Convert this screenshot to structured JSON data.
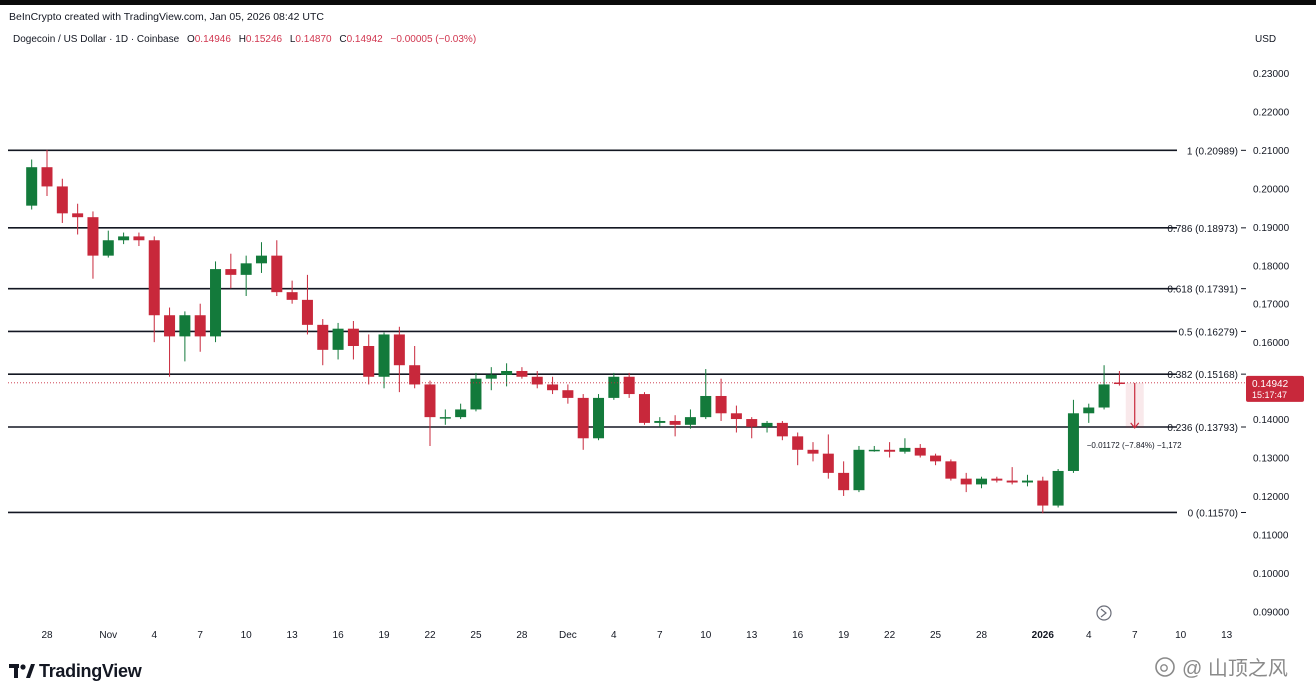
{
  "header": {
    "credit": "BeInCrypto created with TradingView.com, Jan 05, 2026 08:42 UTC",
    "symbol": "Dogecoin / US Dollar · 1D · Coinbase",
    "open_label": "O",
    "open": "0.14946",
    "high_label": "H",
    "high": "0.15246",
    "low_label": "L",
    "low": "0.14870",
    "close_label": "C",
    "close": "0.14942",
    "change": "−0.00005 (−0.03%)",
    "currency": "USD"
  },
  "chart_data": {
    "type": "candlestick",
    "ylim": [
      0.085,
      0.235
    ],
    "y_ticks": [
      "0.23000",
      "0.22000",
      "0.21000",
      "0.20000",
      "0.19000",
      "0.18000",
      "0.17000",
      "0.16000",
      "0.15000",
      "0.14000",
      "0.13000",
      "0.12000",
      "0.11000",
      "0.10000",
      "0.09000"
    ],
    "y_tick_values": [
      0.23,
      0.22,
      0.21,
      0.2,
      0.19,
      0.18,
      0.17,
      0.16,
      0.15,
      0.14,
      0.13,
      0.12,
      0.11,
      0.1,
      0.09
    ],
    "x_ticks": [
      {
        "label": "28",
        "day": -4
      },
      {
        "label": "Nov",
        "day": 0
      },
      {
        "label": "4",
        "day": 3
      },
      {
        "label": "7",
        "day": 6
      },
      {
        "label": "10",
        "day": 9
      },
      {
        "label": "13",
        "day": 12
      },
      {
        "label": "16",
        "day": 15
      },
      {
        "label": "19",
        "day": 18
      },
      {
        "label": "22",
        "day": 21
      },
      {
        "label": "25",
        "day": 24
      },
      {
        "label": "28",
        "day": 27
      },
      {
        "label": "Dec",
        "day": 30
      },
      {
        "label": "4",
        "day": 33
      },
      {
        "label": "7",
        "day": 36
      },
      {
        "label": "10",
        "day": 39
      },
      {
        "label": "13",
        "day": 42
      },
      {
        "label": "16",
        "day": 45
      },
      {
        "label": "19",
        "day": 48
      },
      {
        "label": "22",
        "day": 51
      },
      {
        "label": "25",
        "day": 54
      },
      {
        "label": "28",
        "day": 57
      },
      {
        "label": "2026",
        "day": 61,
        "bold": true
      },
      {
        "label": "4",
        "day": 64
      },
      {
        "label": "7",
        "day": 67
      },
      {
        "label": "10",
        "day": 70
      },
      {
        "label": "13",
        "day": 73
      }
    ],
    "fib_levels": [
      {
        "label": "1 (0.20989)",
        "value": 0.20989
      },
      {
        "label": "0.786 (0.18973)",
        "value": 0.18973
      },
      {
        "label": "0.618 (0.17391)",
        "value": 0.17391
      },
      {
        "label": "0.5 (0.16279)",
        "value": 0.16279
      },
      {
        "label": "0.382 (0.15168)",
        "value": 0.15168
      },
      {
        "label": "0.236 (0.13793)",
        "value": 0.13793
      },
      {
        "label": "0 (0.11570)",
        "value": 0.1157
      }
    ],
    "candles": [
      {
        "day": -5,
        "o": 0.1955,
        "h": 0.2075,
        "l": 0.1945,
        "c": 0.2055
      },
      {
        "day": -4,
        "o": 0.2055,
        "h": 0.21,
        "l": 0.198,
        "c": 0.2005
      },
      {
        "day": -3,
        "o": 0.2005,
        "h": 0.2025,
        "l": 0.191,
        "c": 0.1935
      },
      {
        "day": -2,
        "o": 0.1935,
        "h": 0.196,
        "l": 0.188,
        "c": 0.1925
      },
      {
        "day": -1,
        "o": 0.1925,
        "h": 0.194,
        "l": 0.1765,
        "c": 0.1825
      },
      {
        "day": 0,
        "o": 0.1825,
        "h": 0.189,
        "l": 0.182,
        "c": 0.1865
      },
      {
        "day": 1,
        "o": 0.1865,
        "h": 0.1885,
        "l": 0.1855,
        "c": 0.1875
      },
      {
        "day": 2,
        "o": 0.1875,
        "h": 0.1885,
        "l": 0.185,
        "c": 0.1865
      },
      {
        "day": 3,
        "o": 0.1865,
        "h": 0.1875,
        "l": 0.16,
        "c": 0.167
      },
      {
        "day": 4,
        "o": 0.167,
        "h": 0.169,
        "l": 0.151,
        "c": 0.1615
      },
      {
        "day": 5,
        "o": 0.1615,
        "h": 0.168,
        "l": 0.155,
        "c": 0.167
      },
      {
        "day": 6,
        "o": 0.167,
        "h": 0.17,
        "l": 0.1575,
        "c": 0.1615
      },
      {
        "day": 7,
        "o": 0.1615,
        "h": 0.181,
        "l": 0.16,
        "c": 0.179
      },
      {
        "day": 8,
        "o": 0.179,
        "h": 0.183,
        "l": 0.174,
        "c": 0.1775
      },
      {
        "day": 9,
        "o": 0.1775,
        "h": 0.1825,
        "l": 0.172,
        "c": 0.1805
      },
      {
        "day": 10,
        "o": 0.1805,
        "h": 0.186,
        "l": 0.178,
        "c": 0.1825
      },
      {
        "day": 11,
        "o": 0.1825,
        "h": 0.1865,
        "l": 0.172,
        "c": 0.173
      },
      {
        "day": 12,
        "o": 0.173,
        "h": 0.176,
        "l": 0.17,
        "c": 0.171
      },
      {
        "day": 13,
        "o": 0.171,
        "h": 0.1775,
        "l": 0.162,
        "c": 0.1645
      },
      {
        "day": 14,
        "o": 0.1645,
        "h": 0.166,
        "l": 0.154,
        "c": 0.158
      },
      {
        "day": 15,
        "o": 0.158,
        "h": 0.165,
        "l": 0.1555,
        "c": 0.1635
      },
      {
        "day": 16,
        "o": 0.1635,
        "h": 0.1655,
        "l": 0.1555,
        "c": 0.159
      },
      {
        "day": 17,
        "o": 0.159,
        "h": 0.162,
        "l": 0.149,
        "c": 0.151
      },
      {
        "day": 18,
        "o": 0.151,
        "h": 0.1625,
        "l": 0.148,
        "c": 0.162
      },
      {
        "day": 19,
        "o": 0.162,
        "h": 0.164,
        "l": 0.147,
        "c": 0.154
      },
      {
        "day": 20,
        "o": 0.154,
        "h": 0.159,
        "l": 0.148,
        "c": 0.149
      },
      {
        "day": 21,
        "o": 0.149,
        "h": 0.15,
        "l": 0.133,
        "c": 0.1405
      },
      {
        "day": 22,
        "o": 0.1405,
        "h": 0.1425,
        "l": 0.1385,
        "c": 0.1405
      },
      {
        "day": 23,
        "o": 0.1405,
        "h": 0.144,
        "l": 0.14,
        "c": 0.1425
      },
      {
        "day": 24,
        "o": 0.1425,
        "h": 0.152,
        "l": 0.142,
        "c": 0.1505
      },
      {
        "day": 25,
        "o": 0.1505,
        "h": 0.1535,
        "l": 0.1475,
        "c": 0.1515
      },
      {
        "day": 26,
        "o": 0.1515,
        "h": 0.1545,
        "l": 0.1485,
        "c": 0.1525
      },
      {
        "day": 27,
        "o": 0.1525,
        "h": 0.1535,
        "l": 0.1505,
        "c": 0.151
      },
      {
        "day": 28,
        "o": 0.151,
        "h": 0.1525,
        "l": 0.148,
        "c": 0.149
      },
      {
        "day": 29,
        "o": 0.149,
        "h": 0.151,
        "l": 0.1465,
        "c": 0.1475
      },
      {
        "day": 30,
        "o": 0.1475,
        "h": 0.149,
        "l": 0.144,
        "c": 0.1455
      },
      {
        "day": 31,
        "o": 0.1455,
        "h": 0.1465,
        "l": 0.132,
        "c": 0.135
      },
      {
        "day": 32,
        "o": 0.135,
        "h": 0.1465,
        "l": 0.1345,
        "c": 0.1455
      },
      {
        "day": 33,
        "o": 0.1455,
        "h": 0.152,
        "l": 0.145,
        "c": 0.151
      },
      {
        "day": 34,
        "o": 0.151,
        "h": 0.152,
        "l": 0.1455,
        "c": 0.1465
      },
      {
        "day": 35,
        "o": 0.1465,
        "h": 0.147,
        "l": 0.1385,
        "c": 0.139
      },
      {
        "day": 36,
        "o": 0.139,
        "h": 0.1405,
        "l": 0.138,
        "c": 0.1395
      },
      {
        "day": 37,
        "o": 0.1395,
        "h": 0.141,
        "l": 0.1355,
        "c": 0.1385
      },
      {
        "day": 38,
        "o": 0.1385,
        "h": 0.1425,
        "l": 0.1375,
        "c": 0.1405
      },
      {
        "day": 39,
        "o": 0.1405,
        "h": 0.153,
        "l": 0.14,
        "c": 0.146
      },
      {
        "day": 40,
        "o": 0.146,
        "h": 0.1505,
        "l": 0.1395,
        "c": 0.1415
      },
      {
        "day": 41,
        "o": 0.1415,
        "h": 0.1435,
        "l": 0.1365,
        "c": 0.14
      },
      {
        "day": 42,
        "o": 0.14,
        "h": 0.1405,
        "l": 0.135,
        "c": 0.138
      },
      {
        "day": 43,
        "o": 0.138,
        "h": 0.1395,
        "l": 0.1365,
        "c": 0.139
      },
      {
        "day": 44,
        "o": 0.139,
        "h": 0.1395,
        "l": 0.1345,
        "c": 0.1355
      },
      {
        "day": 45,
        "o": 0.1355,
        "h": 0.1365,
        "l": 0.128,
        "c": 0.132
      },
      {
        "day": 46,
        "o": 0.132,
        "h": 0.134,
        "l": 0.129,
        "c": 0.131
      },
      {
        "day": 47,
        "o": 0.131,
        "h": 0.136,
        "l": 0.1245,
        "c": 0.126
      },
      {
        "day": 48,
        "o": 0.126,
        "h": 0.129,
        "l": 0.12,
        "c": 0.1215
      },
      {
        "day": 49,
        "o": 0.1215,
        "h": 0.133,
        "l": 0.121,
        "c": 0.132
      },
      {
        "day": 50,
        "o": 0.132,
        "h": 0.133,
        "l": 0.1315,
        "c": 0.132
      },
      {
        "day": 51,
        "o": 0.132,
        "h": 0.134,
        "l": 0.13,
        "c": 0.1315
      },
      {
        "day": 52,
        "o": 0.1315,
        "h": 0.135,
        "l": 0.131,
        "c": 0.1325
      },
      {
        "day": 53,
        "o": 0.1325,
        "h": 0.1335,
        "l": 0.13,
        "c": 0.1305
      },
      {
        "day": 54,
        "o": 0.1305,
        "h": 0.131,
        "l": 0.128,
        "c": 0.129
      },
      {
        "day": 55,
        "o": 0.129,
        "h": 0.1295,
        "l": 0.124,
        "c": 0.1245
      },
      {
        "day": 56,
        "o": 0.1245,
        "h": 0.126,
        "l": 0.121,
        "c": 0.123
      },
      {
        "day": 57,
        "o": 0.123,
        "h": 0.125,
        "l": 0.122,
        "c": 0.1245
      },
      {
        "day": 58,
        "o": 0.1245,
        "h": 0.125,
        "l": 0.1235,
        "c": 0.124
      },
      {
        "day": 59,
        "o": 0.124,
        "h": 0.1275,
        "l": 0.123,
        "c": 0.1235
      },
      {
        "day": 60,
        "o": 0.1235,
        "h": 0.1255,
        "l": 0.1225,
        "c": 0.124
      },
      {
        "day": 61,
        "o": 0.124,
        "h": 0.125,
        "l": 0.1155,
        "c": 0.1175
      },
      {
        "day": 62,
        "o": 0.1175,
        "h": 0.127,
        "l": 0.117,
        "c": 0.1265
      },
      {
        "day": 63,
        "o": 0.1265,
        "h": 0.145,
        "l": 0.126,
        "c": 0.1415
      },
      {
        "day": 64,
        "o": 0.1415,
        "h": 0.144,
        "l": 0.139,
        "c": 0.143
      },
      {
        "day": 65,
        "o": 0.143,
        "h": 0.154,
        "l": 0.1425,
        "c": 0.149
      },
      {
        "day": 66,
        "o": 0.1495,
        "h": 0.1525,
        "l": 0.1487,
        "c": 0.1494
      }
    ],
    "current_price": {
      "value": 0.14942,
      "label": "0.14942",
      "timer": "15:17:47"
    },
    "measure": {
      "label": "−0.01172 (−7.84%) −1,172",
      "from": 0.1494,
      "to": 0.1377,
      "day": 67
    }
  },
  "colors": {
    "up": "#137a3b",
    "down": "#c8283b",
    "fib_line": "#131722",
    "axis_text": "#131722",
    "current_label_bg": "#c8283b"
  },
  "footer": {
    "logo_text": "TradingView",
    "watermark": "@ 山顶之风"
  }
}
